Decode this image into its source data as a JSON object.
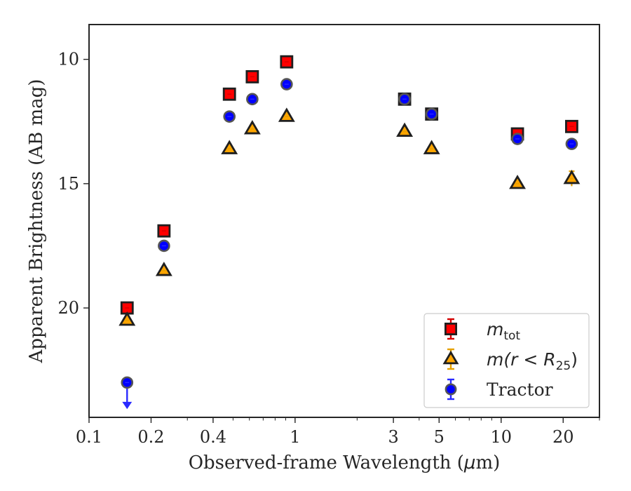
{
  "chart_data": {
    "type": "scatter",
    "xlabel_pre": "Observed-frame Wavelength (",
    "xlabel_mu": "μ",
    "xlabel_post": "m)",
    "ylabel": "Apparent Brightness (AB mag)",
    "xscale": "log",
    "xlim": [
      0.1,
      30
    ],
    "ylim": [
      24.4,
      8.6
    ],
    "y_inverted": true,
    "grid": false,
    "legend_position": "lower-right",
    "xticks": [
      {
        "value": 0.1,
        "label": "0.1"
      },
      {
        "value": 0.2,
        "label": "0.2"
      },
      {
        "value": 0.4,
        "label": "0.4"
      },
      {
        "value": 1,
        "label": "1"
      },
      {
        "value": 3,
        "label": "3"
      },
      {
        "value": 5,
        "label": "5"
      },
      {
        "value": 10,
        "label": "10"
      },
      {
        "value": 20,
        "label": "20"
      }
    ],
    "yticks": [
      {
        "value": 10,
        "label": "10"
      },
      {
        "value": 15,
        "label": "15"
      },
      {
        "value": 20,
        "label": "20"
      }
    ],
    "series": [
      {
        "legend_main": "m",
        "legend_sub": "tot",
        "marker": "square",
        "color": "#ff0000",
        "errcolor": "#d40000",
        "x": [
          0.153,
          0.231,
          0.48,
          0.62,
          0.91,
          3.4,
          4.6,
          12.0,
          22.0
        ],
        "y": [
          20.0,
          16.9,
          11.4,
          10.7,
          10.1,
          11.6,
          12.2,
          13.0,
          12.7
        ]
      },
      {
        "legend_main": "m(r < R",
        "legend_sub": "25",
        "legend_end": ")",
        "marker": "triangle",
        "color": "#ffa500",
        "errcolor": "#e6a100",
        "x": [
          0.153,
          0.231,
          0.48,
          0.62,
          0.91,
          3.4,
          4.6,
          12.0,
          22.0
        ],
        "y": [
          20.5,
          18.5,
          13.6,
          12.8,
          12.3,
          12.9,
          13.6,
          15.0,
          14.8
        ],
        "yerr": [
          0,
          0,
          0,
          0,
          0,
          0,
          0,
          0,
          0.3
        ]
      },
      {
        "legend_label": "Tractor",
        "marker": "circle",
        "color": "#0000ff",
        "errcolor": "#2a2aff",
        "x": [
          0.153,
          0.231,
          0.48,
          0.62,
          0.91,
          3.4,
          4.6,
          12.0,
          22.0
        ],
        "y": [
          23.0,
          17.5,
          12.3,
          11.6,
          11.0,
          11.6,
          12.2,
          13.2,
          13.4
        ],
        "upper_limit": [
          true,
          false,
          false,
          false,
          false,
          false,
          false,
          false,
          false
        ]
      }
    ]
  }
}
